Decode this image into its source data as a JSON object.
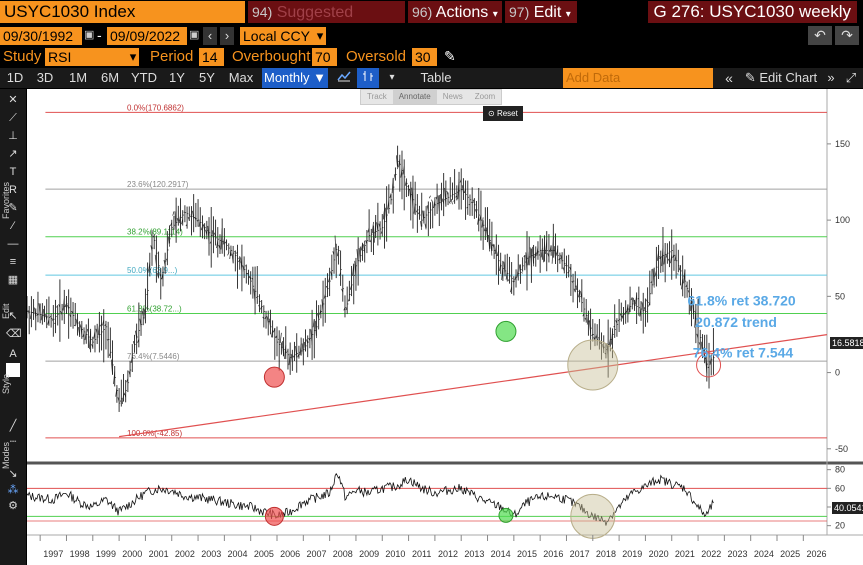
{
  "header": {
    "ticker": "USYC1030 Index",
    "suggested_num": "94)",
    "suggested_label": "Suggested Charts",
    "actions_num": "96)",
    "actions_label": "Actions",
    "edit_num": "97)",
    "edit_label": "Edit",
    "window_title": "G 276: USYC1030 weekly"
  },
  "range": {
    "start_date": "09/30/1992",
    "separator": "-",
    "end_date": "09/09/2022",
    "currency": "Local CCY"
  },
  "study": {
    "study_label": "Study",
    "study_value": "RSI",
    "period_label": "Period",
    "period_value": "14",
    "overbought_label": "Overbought",
    "overbought_value": "70",
    "oversold_label": "Oversold",
    "oversold_value": "30"
  },
  "toolbar": {
    "periods": [
      "1D",
      "3D",
      "1M",
      "6M",
      "YTD",
      "1Y",
      "5Y",
      "Max"
    ],
    "frequency": "Monthly",
    "table_label": "Table",
    "add_data_placeholder": "Add Data",
    "edit_chart_label": "Edit Chart"
  },
  "float_toolbar": {
    "items": [
      "Track",
      "Annotate",
      "News",
      "Zoom"
    ],
    "reset_label": "Reset"
  },
  "left_panel_labels": {
    "favorites": "Favorites",
    "edit": "Edit",
    "style": "Style",
    "modes": "Modes"
  },
  "chart_data": [
    {
      "type": "line",
      "title": "USYC1030 Index",
      "y_ticks": [
        150,
        100,
        50,
        0,
        -50
      ],
      "last_value": "16.5818",
      "fib_levels": [
        {
          "label": "0.0%(170.6862)",
          "value": 170.6862,
          "color": "#e05050"
        },
        {
          "label": "23.6%(120.2917)",
          "value": 120.2917,
          "color": "#a0a0a0"
        },
        {
          "label": "38.2%(89.1114)",
          "value": 89.1114,
          "color": "#50d050"
        },
        {
          "label": "50.0%(63.9...)",
          "value": 63.9,
          "color": "#60c8e0"
        },
        {
          "label": "61.8%(38.72...)",
          "value": 38.72,
          "color": "#50d050"
        },
        {
          "label": "76.4%(7.5446)",
          "value": 7.5446,
          "color": "#a0a0a0"
        },
        {
          "label": "100.0%(-42.85)",
          "value": -42.85,
          "color": "#e05050"
        }
      ],
      "annotations": [
        "61.8% ret 38.720",
        "20.872 trend",
        "76.4% ret 7.544"
      ],
      "series": [
        {
          "name": "USYC1030",
          "x": [
            1996.5,
            1997,
            1997.5,
            1998,
            1998.5,
            1999,
            1999.5,
            2000,
            2000.3,
            2000.6,
            2001,
            2001.3,
            2001.6,
            2002,
            2002.5,
            2003,
            2003.5,
            2004,
            2004.5,
            2005,
            2005.5,
            2006,
            2006.5,
            2007,
            2007.5,
            2008,
            2008.3,
            2008.6,
            2009,
            2009.5,
            2010,
            2010.3,
            2010.6,
            2011,
            2011.5,
            2012,
            2012.5,
            2013,
            2013.5,
            2014,
            2014.5,
            2015,
            2015.5,
            2016,
            2016.5,
            2017,
            2017.5,
            2018,
            2018.5,
            2019,
            2019.5,
            2020,
            2020.5,
            2021,
            2021.5,
            2022,
            2022.3,
            2022.6
          ],
          "y": [
            40,
            38,
            35,
            45,
            30,
            20,
            30,
            -20,
            -10,
            20,
            40,
            90,
            60,
            95,
            105,
            100,
            90,
            85,
            75,
            60,
            40,
            20,
            10,
            15,
            30,
            60,
            85,
            40,
            70,
            90,
            95,
            110,
            140,
            120,
            100,
            110,
            115,
            120,
            110,
            90,
            70,
            60,
            75,
            80,
            80,
            70,
            50,
            25,
            15,
            35,
            45,
            40,
            75,
            80,
            60,
            30,
            5,
            10
          ]
        }
      ]
    },
    {
      "type": "line",
      "title": "RSI",
      "y_ticks": [
        80,
        60,
        40,
        20
      ],
      "last_value": "40.0541",
      "series": [
        {
          "name": "RSI",
          "x": [
            1996.5,
            1997,
            1997.5,
            1998,
            1998.5,
            1999,
            1999.5,
            2000,
            2000.5,
            2001,
            2001.5,
            2002,
            2002.5,
            2003,
            2003.5,
            2004,
            2004.5,
            2005,
            2005.5,
            2006,
            2006.5,
            2007,
            2007.5,
            2008,
            2008.3,
            2008.6,
            2009,
            2009.5,
            2010,
            2010.5,
            2011,
            2011.5,
            2012,
            2012.5,
            2013,
            2013.5,
            2014,
            2014.5,
            2015,
            2015.5,
            2016,
            2016.5,
            2017,
            2017.5,
            2018,
            2018.5,
            2019,
            2019.5,
            2020,
            2020.5,
            2021,
            2021.5,
            2022,
            2022.3,
            2022.6
          ],
          "y": [
            52,
            50,
            48,
            55,
            45,
            40,
            48,
            35,
            45,
            55,
            60,
            58,
            52,
            50,
            48,
            45,
            42,
            40,
            35,
            30,
            35,
            45,
            50,
            55,
            78,
            50,
            58,
            55,
            60,
            62,
            70,
            60,
            55,
            58,
            60,
            52,
            45,
            40,
            30,
            45,
            50,
            52,
            48,
            40,
            30,
            25,
            40,
            55,
            62,
            70,
            65,
            60,
            40,
            30,
            45
          ]
        }
      ]
    }
  ],
  "x_axis_years": [
    "1997",
    "1998",
    "1999",
    "2000",
    "2001",
    "2002",
    "2003",
    "2004",
    "2005",
    "2006",
    "2007",
    "2008",
    "2009",
    "2010",
    "2011",
    "2012",
    "2013",
    "2014",
    "2015",
    "2016",
    "2017",
    "2018",
    "2019",
    "2020",
    "2021",
    "2022",
    "2023",
    "2024",
    "2025",
    "2026"
  ],
  "colors": {
    "bloomberg_orange": "#f7931e",
    "dark_red": "#6b0f12",
    "active_blue": "#1d5ec8",
    "trend_red": "#e05050",
    "fib_green": "#50d050",
    "fib_cyan": "#60c8e0",
    "annot_blue": "#5aa9e6"
  }
}
